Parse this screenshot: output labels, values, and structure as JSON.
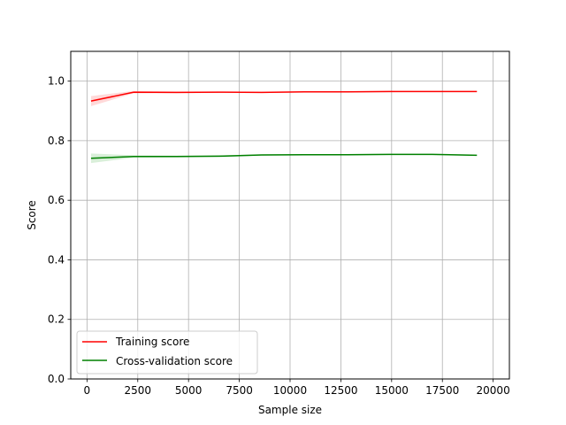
{
  "chart_data": {
    "type": "line",
    "title": "",
    "xlabel": "Sample size",
    "ylabel": "Score",
    "xlim": [
      -800,
      20800
    ],
    "ylim": [
      0,
      1.1
    ],
    "xticks": [
      0,
      2500,
      5000,
      7500,
      10000,
      12500,
      15000,
      17500,
      20000
    ],
    "xtick_labels": [
      "0",
      "2500",
      "5000",
      "7500",
      "10000",
      "12500",
      "15000",
      "17500",
      "20000"
    ],
    "yticks": [
      0.0,
      0.2,
      0.4,
      0.6,
      0.8,
      1.0
    ],
    "ytick_labels": [
      "0.0",
      "0.2",
      "0.4",
      "0.6",
      "0.8",
      "1.0"
    ],
    "grid": true,
    "legend_position": "lower-left",
    "x": [
      200,
      2300,
      4400,
      6500,
      8600,
      10700,
      12800,
      14900,
      17000,
      19200
    ],
    "series": [
      {
        "name": "Training score",
        "color": "#ff0000",
        "band_color": "#ffb3b3",
        "values": [
          0.933,
          0.963,
          0.962,
          0.963,
          0.962,
          0.964,
          0.964,
          0.965,
          0.965,
          0.965
        ],
        "band": [
          0.017,
          0.004,
          0.003,
          0.002,
          0.002,
          0.002,
          0.002,
          0.002,
          0.001,
          0.001
        ]
      },
      {
        "name": "Cross-validation score",
        "color": "#008000",
        "band_color": "#b3e0b3",
        "values": [
          0.741,
          0.747,
          0.747,
          0.748,
          0.752,
          0.753,
          0.753,
          0.754,
          0.754,
          0.751
        ],
        "band": [
          0.016,
          0.004,
          0.003,
          0.003,
          0.002,
          0.002,
          0.002,
          0.002,
          0.002,
          0.002
        ]
      }
    ]
  }
}
